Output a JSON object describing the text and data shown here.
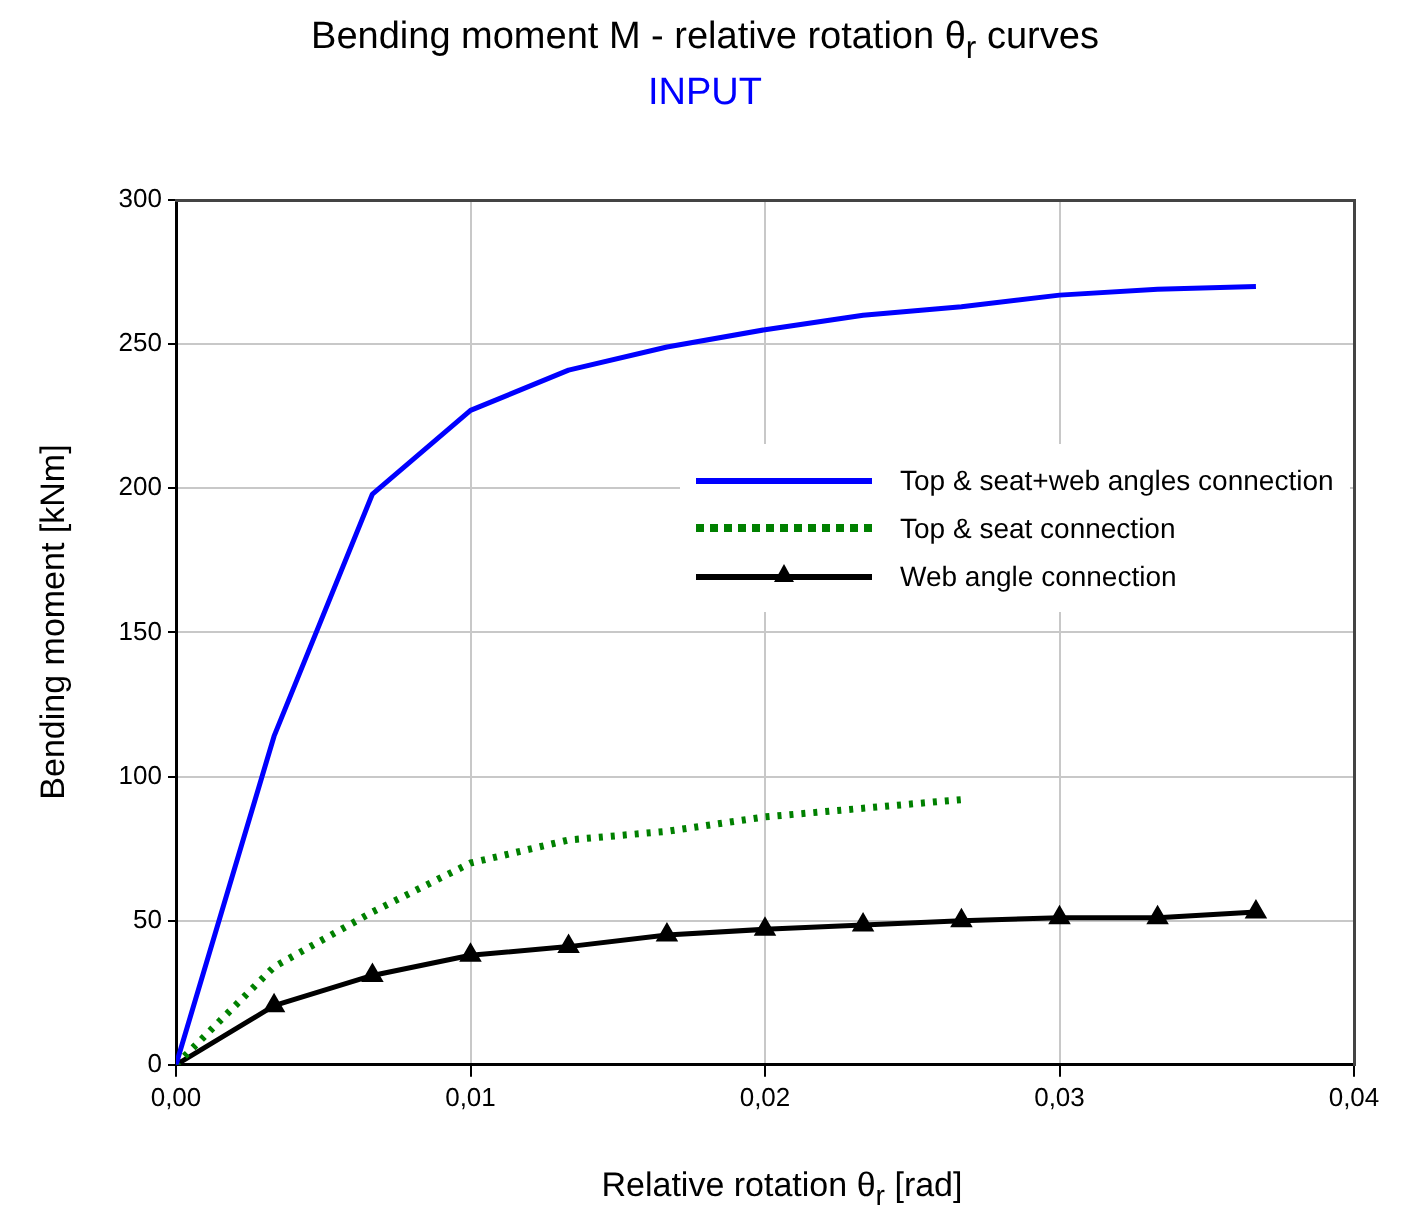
{
  "chart_data": {
    "type": "line",
    "title": "Bending moment  M - relative rotation θ$_{r}$ curves",
    "subtitle": "INPUT",
    "xlabel": "Relative rotation  θ$_{r}$ [rad]",
    "ylabel": "Bending moment [kNm]",
    "xlim": [
      0,
      0.04
    ],
    "xticks": [
      {
        "value": 0,
        "label": "0,00"
      },
      {
        "value": 0.01,
        "label": "0,01"
      },
      {
        "value": 0.02,
        "label": "0,02"
      },
      {
        "value": 0.03,
        "label": "0,03"
      },
      {
        "value": 0.04,
        "label": "0,04"
      }
    ],
    "ylim": [
      0,
      300
    ],
    "yticks": [
      0,
      50,
      100,
      150,
      200,
      250,
      300
    ],
    "grid": true,
    "legend": "right",
    "series": [
      {
        "name": "Top & seat+web angles connection",
        "color": "#0000ff",
        "marker": "none",
        "line_style": "solid",
        "x": [
          0,
          0.00333,
          0.00667,
          0.01,
          0.01333,
          0.01667,
          0.02,
          0.02333,
          0.02667,
          0.03,
          0.03333,
          0.03667
        ],
        "values": [
          0,
          114,
          198,
          227,
          241,
          249,
          255,
          260,
          263,
          267,
          269,
          270
        ]
      },
      {
        "name": "Top & seat connection",
        "color": "#008000",
        "marker": "none",
        "line_style": "dotted",
        "x": [
          0,
          0.00333,
          0.00667,
          0.01,
          0.01333,
          0.01667,
          0.02,
          0.02333,
          0.02667
        ],
        "values": [
          0,
          34,
          53,
          70,
          78,
          81,
          86,
          89,
          92
        ]
      },
      {
        "name": "Web angle connection",
        "color": "#000000",
        "marker": "triangle",
        "line_style": "solid",
        "x": [
          0,
          0.00333,
          0.00667,
          0.01,
          0.01333,
          0.01667,
          0.02,
          0.02333,
          0.02667,
          0.03,
          0.03333,
          0.03667
        ],
        "values": [
          0,
          20.5,
          31,
          38,
          41,
          45,
          47,
          48.5,
          50,
          51,
          51,
          53
        ]
      }
    ]
  }
}
